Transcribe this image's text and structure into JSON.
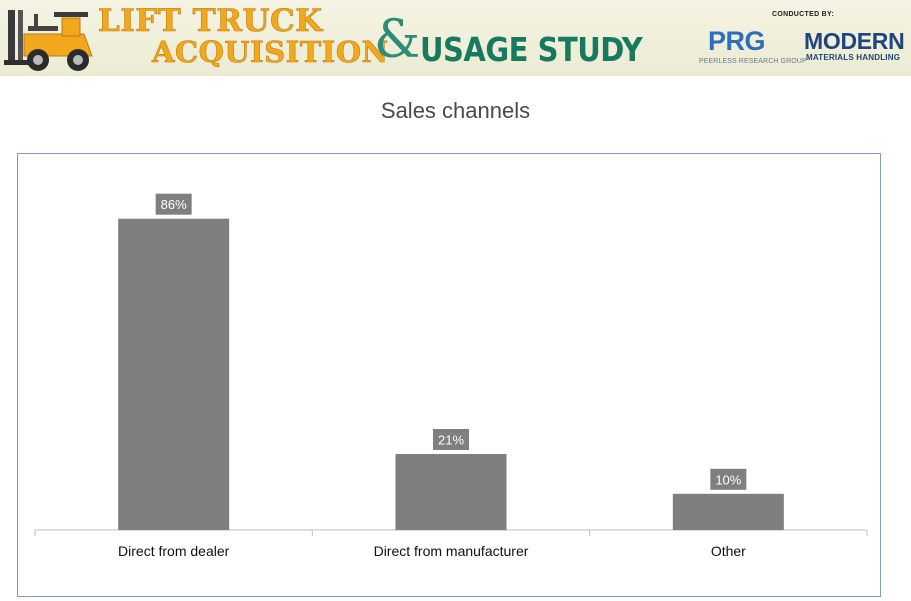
{
  "banner": {
    "title_line1": "LIFT TRUCK",
    "title_line2": "ACQUISITION",
    "ampersand": "&",
    "title_line3": "USAGE STUDY",
    "conducted_by": "CONDUCTED BY:",
    "prg_logo": "PRG",
    "prg_name": "PEERLESS RESEARCH GROUP",
    "mmh_line1": "MODERN",
    "mmh_line2": "MATERIALS HANDLING",
    "colors": {
      "title_orange": "#f2a71d",
      "title_green": "#177a60",
      "prg_blue": "#2d6fba",
      "mmh_navy": "#20447e"
    }
  },
  "chart_data": {
    "type": "bar",
    "title": "Sales channels",
    "categories": [
      "Direct from dealer",
      "Direct from manufacturer",
      "Other"
    ],
    "values": [
      86,
      21,
      10
    ],
    "value_labels": [
      "86%",
      "21%",
      "10%"
    ],
    "unit": "%",
    "ylim": [
      0,
      100
    ],
    "grid": false,
    "legend": "none",
    "bar_color": "#7f7f7f",
    "label_box_color": "#7f7f7f"
  }
}
